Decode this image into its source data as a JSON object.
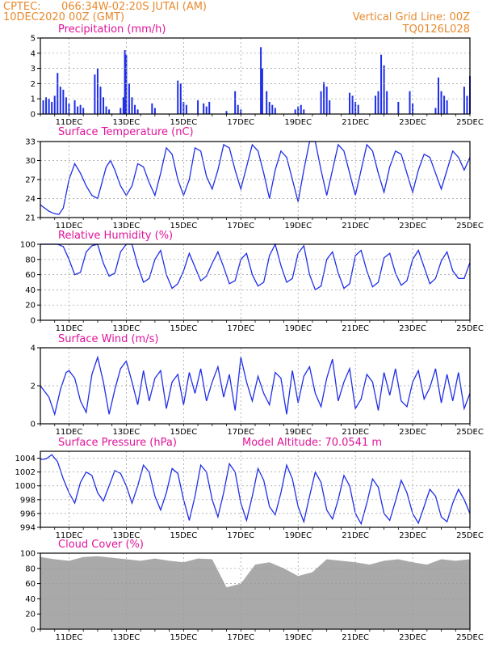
{
  "header": {
    "org": "CPTEC:",
    "location": "066:34W-02:20S   JUTAI (AM)",
    "datetime": "10DEC2020 00Z (GMT)",
    "grid_note": "Vertical Grid Line: 00Z",
    "run_id": "TQ0126L028"
  },
  "colors": {
    "header": "#e88a2e",
    "title": "#e0139a",
    "series": "#1f2ee8",
    "bars": "#1f2ee8",
    "cloud": "#a9a9a9",
    "grid": "#999999"
  },
  "x_ticks": [
    "11DEC",
    "13DEC",
    "15DEC",
    "17DEC",
    "19DEC",
    "21DEC",
    "23DEC",
    "25DEC"
  ],
  "panels": [
    {
      "id": "precip",
      "title": "Precipitation (mm/h)",
      "yticks": [
        "0",
        "1",
        "2",
        "3",
        "4",
        "5"
      ]
    },
    {
      "id": "temp",
      "title": "Surface Temperature (nC)",
      "yticks": [
        "21",
        "24",
        "27",
        "30",
        "33"
      ]
    },
    {
      "id": "rh",
      "title": "Relative Humidity (%)",
      "yticks": [
        "0",
        "20",
        "40",
        "60",
        "80",
        "100"
      ]
    },
    {
      "id": "wind",
      "title": "Surface Wind (m/s)",
      "yticks": [
        "0",
        "2",
        "4"
      ]
    },
    {
      "id": "pres",
      "title": "Surface Pressure (hPa)",
      "extra": "Model Altitude: 70.0541 m",
      "yticks": [
        "994",
        "996",
        "998",
        "1000",
        "1002",
        "1004"
      ]
    },
    {
      "id": "cloud",
      "title": "Cloud Cover (%)",
      "yticks": [
        "0",
        "20",
        "40",
        "60",
        "80",
        "100"
      ]
    }
  ],
  "chart_data": [
    {
      "type": "bar",
      "title": "Precipitation (mm/h)",
      "ylabel": "mm/h",
      "ylim": [
        0,
        5
      ],
      "x_range_days": [
        10,
        25
      ],
      "x_unit": "day of December 2020",
      "x": [
        10.1,
        10.2,
        10.3,
        10.4,
        10.5,
        10.6,
        10.7,
        10.8,
        10.9,
        11.0,
        11.2,
        11.3,
        11.4,
        11.5,
        11.9,
        12.0,
        12.1,
        12.2,
        12.3,
        12.4,
        12.8,
        12.9,
        12.95,
        13.0,
        13.1,
        13.2,
        13.3,
        13.4,
        13.9,
        14.0,
        14.8,
        14.9,
        15.0,
        15.1,
        15.5,
        15.7,
        15.8,
        15.9,
        16.5,
        16.8,
        16.9,
        17.0,
        17.7,
        17.75,
        17.9,
        18.0,
        18.1,
        18.2,
        18.9,
        19.0,
        19.1,
        19.2,
        19.8,
        19.9,
        20.0,
        20.1,
        20.8,
        20.9,
        21.0,
        21.1,
        21.7,
        21.8,
        21.9,
        22.0,
        22.1,
        22.5,
        22.9,
        23.0,
        23.8,
        23.9,
        24.0,
        24.1,
        24.2,
        24.8,
        24.9,
        25.0
      ],
      "values": [
        0.9,
        1.1,
        1.0,
        0.8,
        1.2,
        2.7,
        1.8,
        1.6,
        1.1,
        0.7,
        0.9,
        0.5,
        0.6,
        0.4,
        2.6,
        3.0,
        1.8,
        1.1,
        0.5,
        0.3,
        0.4,
        1.1,
        4.2,
        3.9,
        2.0,
        1.1,
        0.6,
        0.3,
        0.7,
        0.4,
        2.2,
        2.0,
        0.8,
        0.6,
        0.9,
        0.7,
        0.5,
        0.8,
        0.2,
        1.5,
        0.6,
        0.3,
        4.4,
        3.0,
        1.5,
        0.8,
        0.6,
        0.4,
        0.3,
        0.5,
        0.6,
        0.3,
        1.5,
        2.1,
        1.8,
        0.9,
        1.4,
        1.2,
        0.8,
        0.6,
        1.2,
        1.5,
        3.9,
        3.2,
        1.5,
        0.8,
        1.5,
        0.7,
        0.4,
        2.4,
        1.5,
        1.2,
        0.9,
        1.8,
        1.2,
        2.5
      ]
    },
    {
      "type": "line",
      "title": "Surface Temperature (nC)",
      "ylabel": "nC",
      "ylim": [
        21,
        33
      ],
      "x_range_days": [
        10,
        25
      ],
      "x_unit": "day of December 2020",
      "x": [
        10.0,
        10.3,
        10.5,
        10.65,
        10.8,
        11.0,
        11.2,
        11.4,
        11.6,
        11.8,
        12.0,
        12.15,
        12.3,
        12.45,
        12.6,
        12.8,
        13.0,
        13.2,
        13.4,
        13.6,
        13.8,
        14.0,
        14.2,
        14.4,
        14.6,
        14.8,
        15.0,
        15.2,
        15.4,
        15.6,
        15.8,
        16.0,
        16.2,
        16.4,
        16.6,
        16.8,
        17.0,
        17.2,
        17.4,
        17.6,
        17.8,
        18.0,
        18.2,
        18.4,
        18.6,
        18.8,
        19.0,
        19.2,
        19.4,
        19.6,
        19.8,
        20.0,
        20.2,
        20.4,
        20.6,
        20.8,
        21.0,
        21.2,
        21.4,
        21.6,
        21.8,
        22.0,
        22.2,
        22.4,
        22.6,
        22.8,
        23.0,
        23.2,
        23.4,
        23.6,
        23.8,
        24.0,
        24.2,
        24.4,
        24.6,
        24.8,
        25.0
      ],
      "values": [
        23.0,
        22.0,
        21.6,
        21.5,
        22.5,
        27.0,
        29.5,
        28.0,
        26.0,
        24.5,
        24.0,
        26.5,
        29.0,
        30.0,
        28.5,
        26.0,
        24.5,
        26.0,
        29.5,
        29.0,
        26.5,
        24.5,
        28.0,
        32.0,
        31.0,
        27.0,
        24.5,
        27.0,
        32.0,
        31.5,
        27.5,
        25.5,
        28.5,
        32.5,
        32.0,
        28.5,
        25.5,
        29.0,
        32.5,
        31.5,
        28.0,
        24.0,
        28.5,
        31.5,
        30.5,
        27.0,
        23.5,
        28.5,
        33.0,
        33.0,
        28.5,
        24.5,
        28.5,
        32.5,
        31.5,
        28.0,
        24.5,
        28.5,
        32.5,
        31.5,
        28.0,
        25.0,
        29.0,
        31.5,
        31.0,
        28.0,
        25.0,
        28.5,
        31.0,
        30.5,
        28.0,
        25.5,
        28.5,
        31.5,
        30.5,
        28.5,
        30.5
      ]
    },
    {
      "type": "line",
      "title": "Relative Humidity (%)",
      "ylabel": "%",
      "ylim": [
        0,
        100
      ],
      "x_range_days": [
        10,
        25
      ],
      "x_unit": "day of December 2020",
      "x": [
        10.0,
        10.3,
        10.6,
        10.8,
        11.0,
        11.2,
        11.4,
        11.6,
        11.8,
        12.0,
        12.2,
        12.4,
        12.6,
        12.8,
        13.0,
        13.2,
        13.4,
        13.6,
        13.8,
        14.0,
        14.2,
        14.4,
        14.6,
        14.8,
        15.0,
        15.2,
        15.4,
        15.6,
        15.8,
        16.0,
        16.2,
        16.4,
        16.6,
        16.8,
        17.0,
        17.2,
        17.4,
        17.6,
        17.8,
        18.0,
        18.2,
        18.4,
        18.6,
        18.8,
        19.0,
        19.2,
        19.4,
        19.6,
        19.8,
        20.0,
        20.2,
        20.4,
        20.6,
        20.8,
        21.0,
        21.2,
        21.4,
        21.6,
        21.8,
        22.0,
        22.2,
        22.4,
        22.6,
        22.8,
        23.0,
        23.2,
        23.4,
        23.6,
        23.8,
        24.0,
        24.2,
        24.4,
        24.6,
        24.8,
        25.0
      ],
      "values": [
        100,
        100,
        100,
        97,
        80,
        60,
        63,
        90,
        98,
        100,
        75,
        58,
        62,
        90,
        100,
        100,
        72,
        50,
        55,
        80,
        92,
        60,
        42,
        48,
        65,
        88,
        70,
        52,
        58,
        75,
        90,
        70,
        48,
        52,
        80,
        88,
        60,
        45,
        50,
        85,
        100,
        72,
        50,
        55,
        88,
        98,
        60,
        40,
        45,
        80,
        90,
        62,
        42,
        48,
        85,
        92,
        65,
        44,
        50,
        82,
        88,
        62,
        46,
        52,
        80,
        92,
        70,
        48,
        55,
        78,
        90,
        65,
        55,
        55,
        76
      ]
    },
    {
      "type": "line",
      "title": "Surface Wind (m/s)",
      "ylabel": "m/s",
      "ylim": [
        0,
        4
      ],
      "x_range_days": [
        10,
        25
      ],
      "x_unit": "day of December 2020",
      "x": [
        10.0,
        10.3,
        10.5,
        10.7,
        10.9,
        11.0,
        11.2,
        11.4,
        11.6,
        11.8,
        12.0,
        12.2,
        12.4,
        12.6,
        12.8,
        13.0,
        13.2,
        13.4,
        13.6,
        13.8,
        14.0,
        14.2,
        14.4,
        14.6,
        14.8,
        15.0,
        15.2,
        15.4,
        15.6,
        15.8,
        16.0,
        16.2,
        16.4,
        16.6,
        16.8,
        17.0,
        17.2,
        17.4,
        17.6,
        17.8,
        18.0,
        18.2,
        18.4,
        18.6,
        18.8,
        19.0,
        19.2,
        19.4,
        19.6,
        19.8,
        20.0,
        20.2,
        20.4,
        20.6,
        20.8,
        21.0,
        21.2,
        21.4,
        21.6,
        21.8,
        22.0,
        22.2,
        22.4,
        22.6,
        22.8,
        23.0,
        23.2,
        23.4,
        23.6,
        23.8,
        24.0,
        24.2,
        24.4,
        24.6,
        24.8,
        25.0
      ],
      "values": [
        2.0,
        1.4,
        0.5,
        1.8,
        2.7,
        2.8,
        2.4,
        1.2,
        0.6,
        2.6,
        3.5,
        2.2,
        0.5,
        1.8,
        2.9,
        3.3,
        2.2,
        1.0,
        2.8,
        1.2,
        2.4,
        2.8,
        0.8,
        2.2,
        2.6,
        1.0,
        2.7,
        1.6,
        2.9,
        1.2,
        2.2,
        3.0,
        1.4,
        2.6,
        0.7,
        3.5,
        2.2,
        1.2,
        2.5,
        1.6,
        1.0,
        2.7,
        2.4,
        0.5,
        2.8,
        1.1,
        2.5,
        3.0,
        1.6,
        0.9,
        2.4,
        3.4,
        1.2,
        2.2,
        2.9,
        0.8,
        1.3,
        2.6,
        2.2,
        0.7,
        2.7,
        1.5,
        2.9,
        1.2,
        0.9,
        2.2,
        2.8,
        1.3,
        1.9,
        2.9,
        1.1,
        2.6,
        1.2,
        2.7,
        0.8,
        1.6
      ]
    },
    {
      "type": "line",
      "title": "Surface Pressure (hPa)",
      "ylabel": "hPa",
      "ylim": [
        994,
        1005
      ],
      "x_range_days": [
        10,
        25
      ],
      "x_unit": "day of December 2020",
      "x": [
        10.0,
        10.2,
        10.4,
        10.6,
        10.8,
        11.0,
        11.2,
        11.4,
        11.6,
        11.8,
        12.0,
        12.2,
        12.4,
        12.6,
        12.8,
        13.0,
        13.2,
        13.4,
        13.6,
        13.8,
        14.0,
        14.2,
        14.4,
        14.6,
        14.8,
        15.0,
        15.2,
        15.4,
        15.6,
        15.8,
        16.0,
        16.2,
        16.4,
        16.6,
        16.8,
        17.0,
        17.2,
        17.4,
        17.6,
        17.8,
        18.0,
        18.2,
        18.4,
        18.6,
        18.8,
        19.0,
        19.2,
        19.4,
        19.6,
        19.8,
        20.0,
        20.2,
        20.4,
        20.6,
        20.8,
        21.0,
        21.2,
        21.4,
        21.6,
        21.8,
        22.0,
        22.2,
        22.4,
        22.6,
        22.8,
        23.0,
        23.2,
        23.4,
        23.6,
        23.8,
        24.0,
        24.2,
        24.4,
        24.6,
        24.8,
        25.0
      ],
      "values": [
        1003.8,
        1003.9,
        1004.5,
        1003.5,
        1001.0,
        999.0,
        997.5,
        1000.5,
        1002.0,
        1001.5,
        999.0,
        997.8,
        1000.0,
        1002.2,
        1001.8,
        1000.0,
        997.5,
        1000.0,
        1003.0,
        1002.0,
        998.5,
        996.5,
        999.0,
        1002.5,
        1001.8,
        998.0,
        995.0,
        998.5,
        1003.0,
        1002.0,
        998.0,
        995.5,
        999.0,
        1003.2,
        1002.0,
        997.5,
        995.0,
        998.5,
        1002.5,
        1000.8,
        997.0,
        995.8,
        999.0,
        1003.0,
        1001.0,
        997.0,
        994.8,
        998.5,
        1002.0,
        1000.5,
        996.5,
        995.2,
        998.0,
        1001.5,
        1000.0,
        996.0,
        994.5,
        997.5,
        1001.0,
        999.8,
        996.0,
        995.0,
        997.8,
        1000.8,
        999.0,
        996.0,
        994.6,
        997.0,
        999.5,
        998.5,
        995.5,
        994.8,
        997.5,
        999.5,
        998.0,
        996.0
      ]
    },
    {
      "type": "area",
      "title": "Cloud Cover (%)",
      "ylabel": "%",
      "ylim": [
        0,
        100
      ],
      "x_range_days": [
        10,
        25
      ],
      "x_unit": "day of December 2020",
      "x": [
        10.0,
        10.5,
        11.0,
        11.5,
        12.0,
        12.5,
        13.0,
        13.5,
        14.0,
        14.5,
        15.0,
        15.5,
        16.0,
        16.5,
        17.0,
        17.5,
        18.0,
        18.5,
        19.0,
        19.5,
        20.0,
        20.5,
        21.0,
        21.5,
        22.0,
        22.5,
        23.0,
        23.5,
        24.0,
        24.5,
        25.0
      ],
      "values": [
        95,
        92,
        90,
        95,
        96,
        94,
        92,
        90,
        93,
        90,
        88,
        93,
        92,
        55,
        60,
        85,
        88,
        80,
        70,
        75,
        92,
        90,
        88,
        85,
        90,
        92,
        88,
        85,
        92,
        90,
        92
      ]
    }
  ]
}
